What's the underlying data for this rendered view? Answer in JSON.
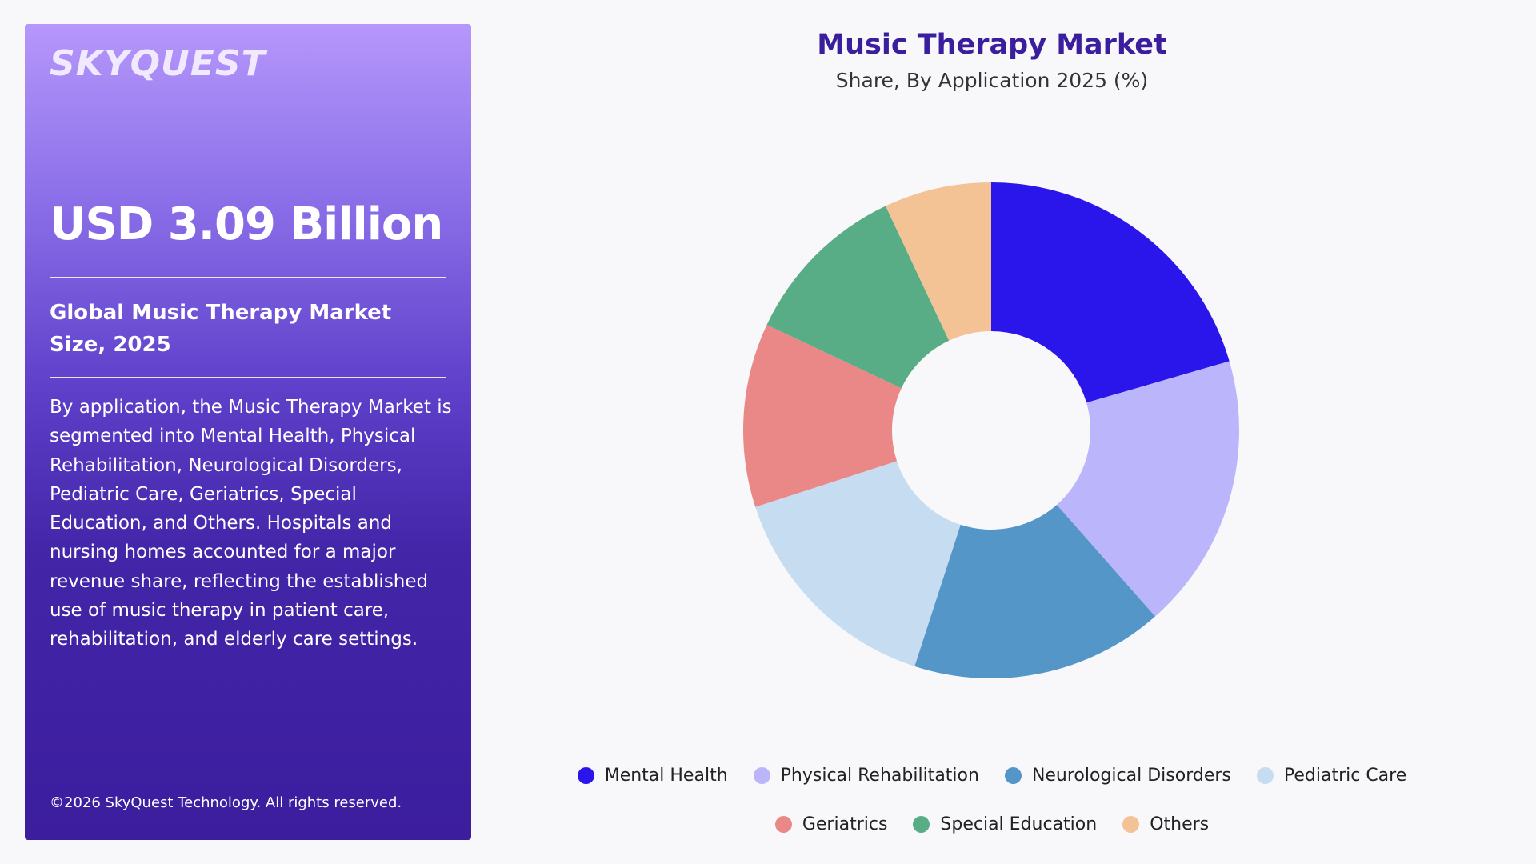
{
  "panel": {
    "logo": "SKYQUEST",
    "headline": "USD 3.09 Billion",
    "subhead": "Global Music Therapy Market Size, 2025",
    "description": "By application, the Music Therapy Market is segmented into Mental Health, Physical Rehabilitation, Neurological Disorders, Pediatric Care, Geriatrics, Special Education, and Others. Hospitals and nursing homes accounted for a major revenue share, reflecting the established use of music therapy in patient care, rehabilitation, and elderly care settings.",
    "copyright": "©2026 SkyQuest Technology. All rights reserved."
  },
  "chart_data": {
    "type": "pie",
    "donut": true,
    "title": "Music Therapy Market",
    "subtitle": "Share, By Application 2025 (%)",
    "categories": [
      "Mental Health",
      "Physical Rehabilitation",
      "Neurological Disorders",
      "Pediatric Care",
      "Geriatrics",
      "Special Education",
      "Others"
    ],
    "values": [
      20.5,
      18.0,
      16.5,
      15.0,
      12.0,
      11.0,
      7.0
    ],
    "colors": [
      "#2a16ea",
      "#bbb5fb",
      "#5596c8",
      "#c6dcf0",
      "#ea8887",
      "#58ad86",
      "#f3c295"
    ],
    "legend_position": "bottom"
  }
}
